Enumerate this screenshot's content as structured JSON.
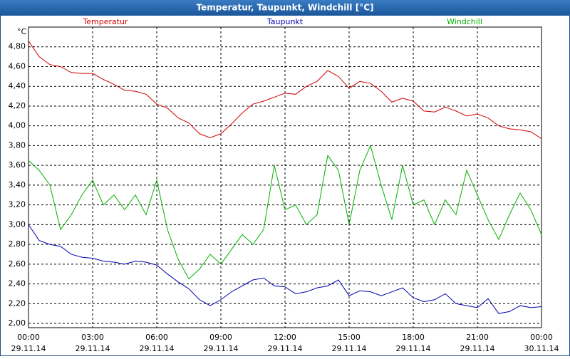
{
  "chart_data": {
    "type": "line",
    "title": "Temperatur, Taupunkt, Windchill [°C]",
    "y_unit": "°C",
    "x": [
      0,
      0.5,
      1,
      1.5,
      2,
      2.5,
      3,
      3.5,
      4,
      4.5,
      5,
      5.5,
      6,
      6.5,
      7,
      7.5,
      8,
      8.5,
      9,
      9.5,
      10,
      10.5,
      11,
      11.5,
      12,
      12.5,
      13,
      13.5,
      14,
      14.5,
      15,
      15.5,
      16,
      16.5,
      17,
      17.5,
      18,
      18.5,
      19,
      19.5,
      20,
      20.5,
      21,
      21.5,
      22,
      22.5,
      23,
      23.5,
      24
    ],
    "xlim": [
      0,
      24
    ],
    "xticks": [
      {
        "value": 0,
        "label": "00:00"
      },
      {
        "value": 3,
        "label": "03:00"
      },
      {
        "value": 6,
        "label": "06:00"
      },
      {
        "value": 9,
        "label": "09:00"
      },
      {
        "value": 12,
        "label": "12:00"
      },
      {
        "value": 15,
        "label": "15:00"
      },
      {
        "value": 18,
        "label": "18:00"
      },
      {
        "value": 21,
        "label": "21:00"
      },
      {
        "value": 24,
        "label": "00:00"
      }
    ],
    "xtick_dates": [
      "29.11.14",
      "29.11.14",
      "29.11.14",
      "29.11.14",
      "29.11.14",
      "29.11.14",
      "29.11.14",
      "29.11.14",
      "30.11.14"
    ],
    "ylim": [
      1.957,
      5.0
    ],
    "yticks": [
      {
        "value": 2.0,
        "label": "2,00"
      },
      {
        "value": 2.2,
        "label": "2,20"
      },
      {
        "value": 2.4,
        "label": "2,40"
      },
      {
        "value": 2.6,
        "label": "2,60"
      },
      {
        "value": 2.8,
        "label": "2,80"
      },
      {
        "value": 3.0,
        "label": "3,00"
      },
      {
        "value": 3.2,
        "label": "3,20"
      },
      {
        "value": 3.4,
        "label": "3,40"
      },
      {
        "value": 3.6,
        "label": "3,60"
      },
      {
        "value": 3.8,
        "label": "3,80"
      },
      {
        "value": 4.0,
        "label": "4,00"
      },
      {
        "value": 4.2,
        "label": "4,20"
      },
      {
        "value": 4.4,
        "label": "4,40"
      },
      {
        "value": 4.6,
        "label": "4,60"
      },
      {
        "value": 4.8,
        "label": "4,80"
      }
    ],
    "grid": true,
    "series": [
      {
        "name": "Temperatur",
        "color": "#d00000",
        "values": [
          4.86,
          4.7,
          4.62,
          4.6,
          4.54,
          4.53,
          4.53,
          4.47,
          4.42,
          4.36,
          4.35,
          4.32,
          4.22,
          4.18,
          4.08,
          4.03,
          3.92,
          3.88,
          3.92,
          4.02,
          4.13,
          4.22,
          4.25,
          4.29,
          4.33,
          4.32,
          4.4,
          4.45,
          4.56,
          4.5,
          4.38,
          4.45,
          4.43,
          4.35,
          4.24,
          4.28,
          4.25,
          4.15,
          4.14,
          4.19,
          4.15,
          4.1,
          4.12,
          4.08,
          4.0,
          3.97,
          3.96,
          3.94,
          3.87
        ]
      },
      {
        "name": "Taupunkt",
        "color": "#0000b0",
        "values": [
          3.0,
          2.84,
          2.8,
          2.78,
          2.7,
          2.67,
          2.66,
          2.63,
          2.62,
          2.6,
          2.63,
          2.62,
          2.59,
          2.5,
          2.42,
          2.35,
          2.24,
          2.18,
          2.24,
          2.32,
          2.38,
          2.44,
          2.46,
          2.38,
          2.37,
          2.3,
          2.32,
          2.36,
          2.38,
          2.44,
          2.28,
          2.33,
          2.32,
          2.28,
          2.32,
          2.36,
          2.26,
          2.22,
          2.24,
          2.3,
          2.2,
          2.18,
          2.16,
          2.25,
          2.1,
          2.12,
          2.18,
          2.16,
          2.17
        ]
      },
      {
        "name": "Windchill",
        "color": "#00b000",
        "values": [
          3.65,
          3.55,
          3.4,
          2.95,
          3.1,
          3.3,
          3.45,
          3.2,
          3.3,
          3.15,
          3.3,
          3.1,
          3.45,
          2.95,
          2.65,
          2.45,
          2.55,
          2.7,
          2.6,
          2.75,
          2.9,
          2.8,
          2.95,
          3.6,
          3.15,
          3.2,
          3.0,
          3.1,
          3.7,
          3.55,
          3.0,
          3.55,
          3.8,
          3.4,
          3.05,
          3.6,
          3.2,
          3.25,
          3.0,
          3.25,
          3.1,
          3.55,
          3.3,
          3.05,
          2.85,
          3.1,
          3.32,
          3.15,
          2.9
        ]
      }
    ]
  }
}
